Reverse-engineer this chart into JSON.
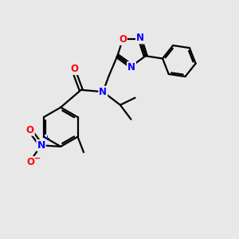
{
  "background_color": "#e8e8e8",
  "bond_color": "#000000",
  "bond_width": 1.6,
  "atom_colors": {
    "O": "#ff0000",
    "N": "#0000ff",
    "C": "#000000"
  },
  "font_size": 8.5,
  "fig_width": 3.0,
  "fig_height": 3.0,
  "dpi": 100
}
